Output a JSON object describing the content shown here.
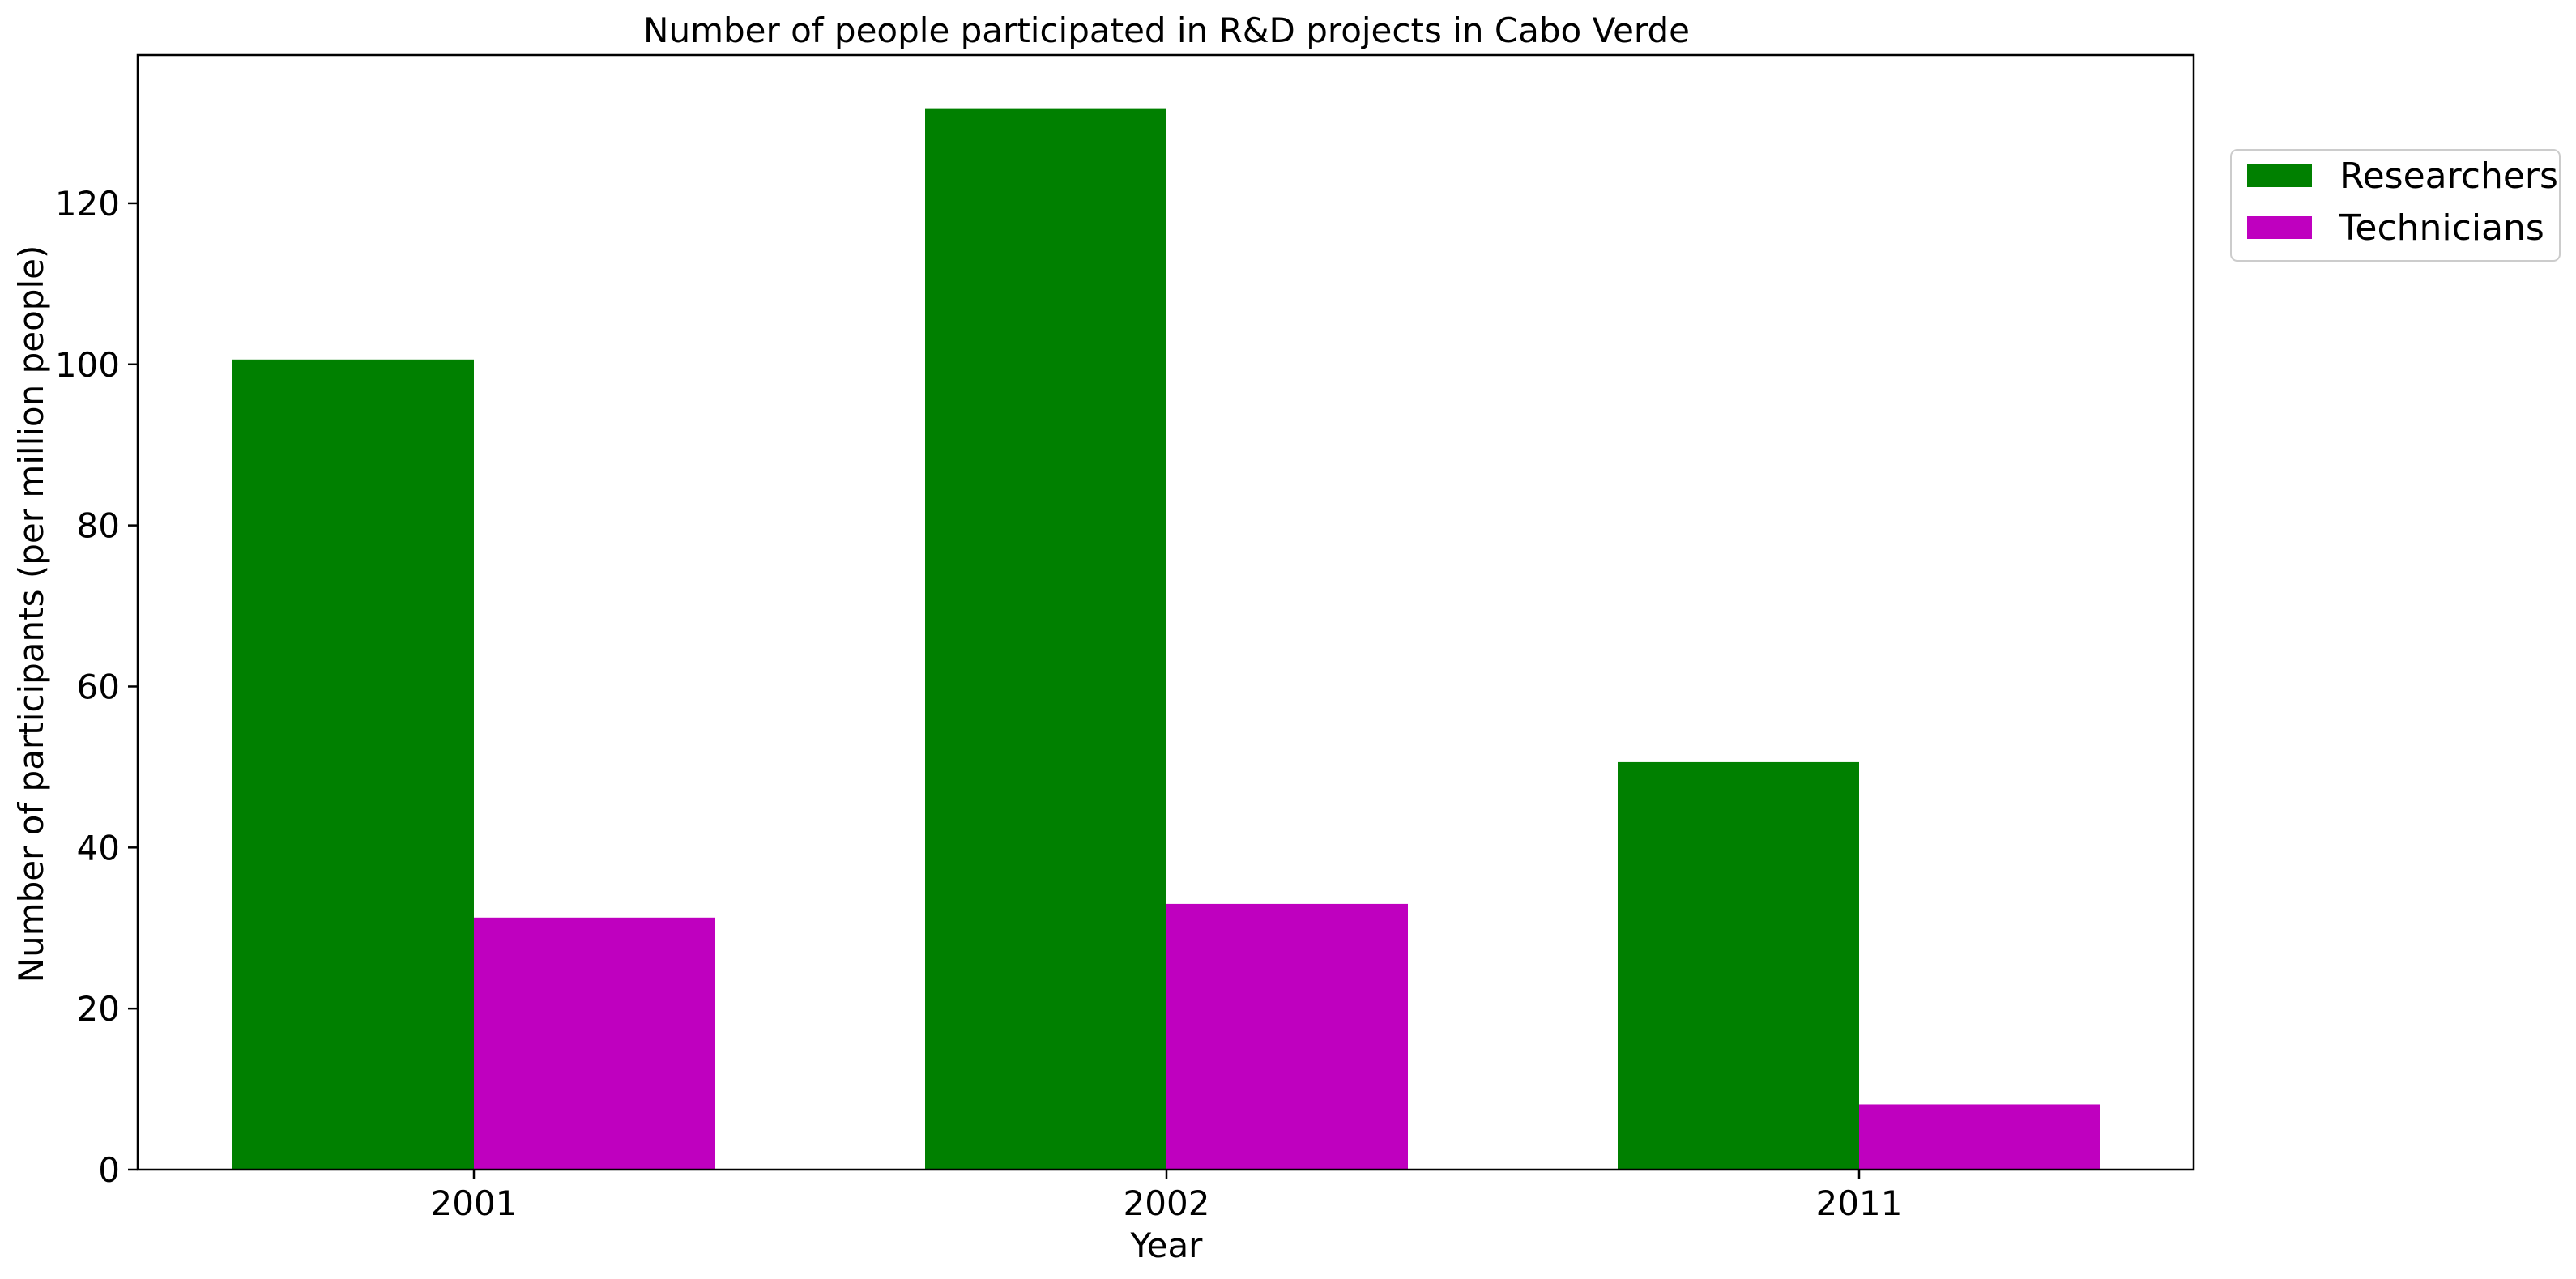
{
  "chart_data": {
    "type": "bar",
    "title": "Number of people participated in R&D projects in Cabo Verde",
    "xlabel": "Year",
    "ylabel": "Number of participants (per million people)",
    "categories": [
      "2001",
      "2002",
      "2011"
    ],
    "series": [
      {
        "name": "Researchers",
        "values": [
          100.6,
          131.8,
          50.6
        ],
        "color": "#008000"
      },
      {
        "name": "Technicians",
        "values": [
          31.3,
          33.0,
          8.1
        ],
        "color": "#bf00bf"
      }
    ],
    "ylim": [
      0,
      138.4
    ],
    "yticks": [
      0,
      20,
      40,
      60,
      80,
      100,
      120
    ],
    "grid": false,
    "legend_position": "outside-top-right"
  }
}
